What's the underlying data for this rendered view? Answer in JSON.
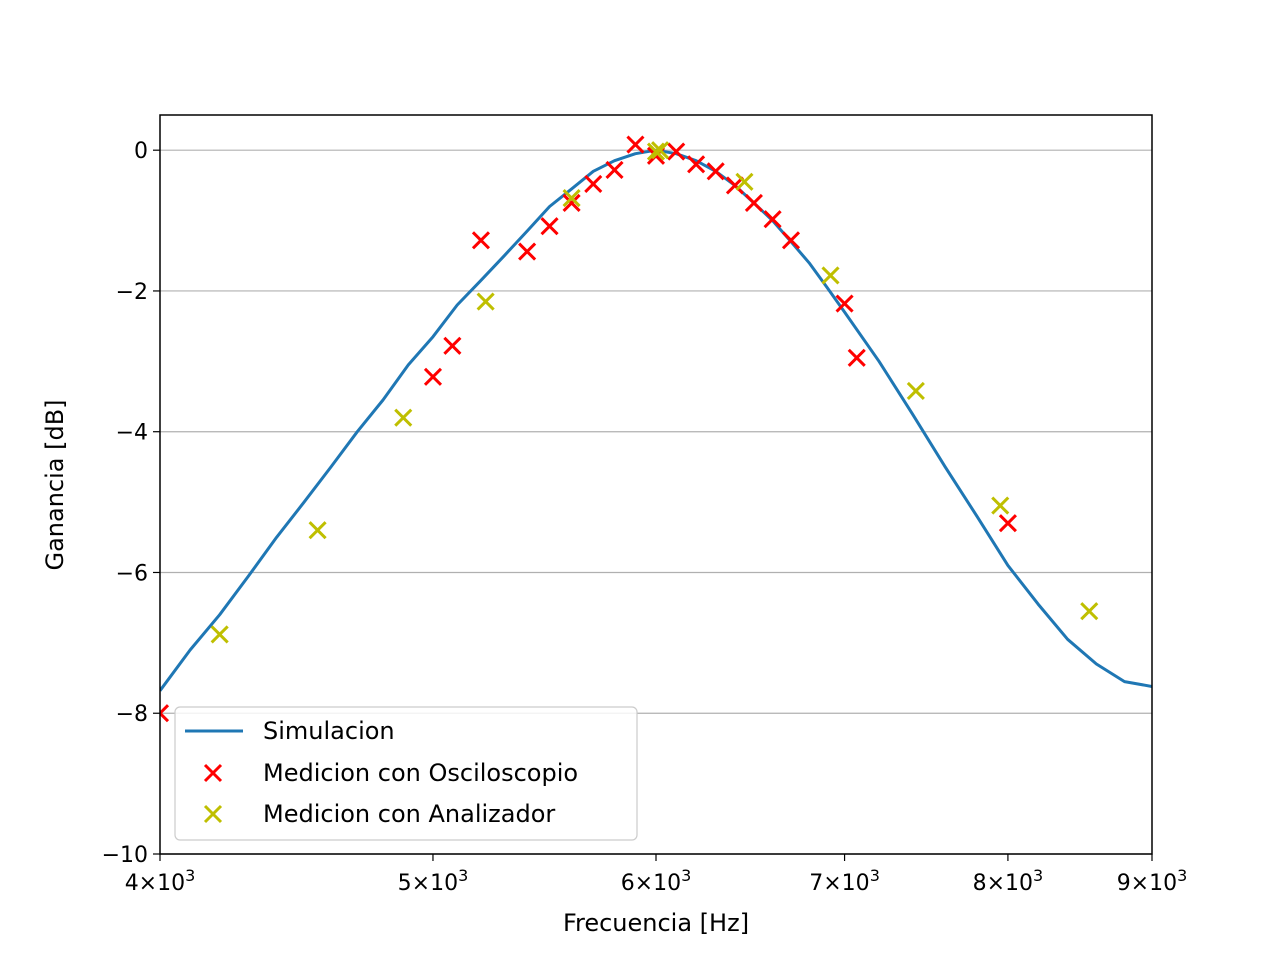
{
  "chart_data": {
    "type": "line",
    "title": "",
    "xlabel": "Frecuencia [Hz]",
    "ylabel": "Ganancia [dB]",
    "xscale": "log",
    "xlim": [
      4000,
      9000
    ],
    "ylim": [
      -10,
      0.5
    ],
    "grid": "y",
    "legend_position": "lower-left",
    "x_ticks": [
      {
        "value": 4000,
        "mantissa": "4",
        "base": "10",
        "exp": "3"
      },
      {
        "value": 5000,
        "mantissa": "5",
        "base": "10",
        "exp": "3"
      },
      {
        "value": 6000,
        "mantissa": "6",
        "base": "10",
        "exp": "3"
      },
      {
        "value": 7000,
        "mantissa": "7",
        "base": "10",
        "exp": "3"
      },
      {
        "value": 8000,
        "mantissa": "8",
        "base": "10",
        "exp": "3"
      },
      {
        "value": 9000,
        "mantissa": "9",
        "base": "10",
        "exp": "3"
      }
    ],
    "times_sign": "×",
    "y_ticks": [
      {
        "value": 0,
        "label": "0"
      },
      {
        "value": -2,
        "label": "−2"
      },
      {
        "value": -4,
        "label": "−4"
      },
      {
        "value": -6,
        "label": "−6"
      },
      {
        "value": -8,
        "label": "−8"
      },
      {
        "value": -10,
        "label": "−10"
      }
    ],
    "series": [
      {
        "name": "Simulacion",
        "kind": "line",
        "color": "#1f77b4",
        "points": [
          [
            4000,
            -7.68
          ],
          [
            4100,
            -7.1
          ],
          [
            4200,
            -6.6
          ],
          [
            4300,
            -6.05
          ],
          [
            4400,
            -5.5
          ],
          [
            4500,
            -5.0
          ],
          [
            4600,
            -4.5
          ],
          [
            4700,
            -4.0
          ],
          [
            4800,
            -3.55
          ],
          [
            4900,
            -3.05
          ],
          [
            5000,
            -2.65
          ],
          [
            5100,
            -2.2
          ],
          [
            5200,
            -1.85
          ],
          [
            5300,
            -1.5
          ],
          [
            5400,
            -1.15
          ],
          [
            5500,
            -0.8
          ],
          [
            5600,
            -0.55
          ],
          [
            5700,
            -0.3
          ],
          [
            5800,
            -0.15
          ],
          [
            5900,
            -0.05
          ],
          [
            6000,
            0.0
          ],
          [
            6100,
            -0.05
          ],
          [
            6200,
            -0.15
          ],
          [
            6300,
            -0.3
          ],
          [
            6400,
            -0.5
          ],
          [
            6500,
            -0.75
          ],
          [
            6600,
            -1.0
          ],
          [
            6700,
            -1.3
          ],
          [
            6800,
            -1.6
          ],
          [
            6900,
            -1.95
          ],
          [
            7000,
            -2.3
          ],
          [
            7200,
            -3.0
          ],
          [
            7400,
            -3.75
          ],
          [
            7600,
            -4.5
          ],
          [
            7800,
            -5.2
          ],
          [
            8000,
            -5.9
          ],
          [
            8200,
            -6.45
          ],
          [
            8400,
            -6.95
          ],
          [
            8600,
            -7.3
          ],
          [
            8800,
            -7.55
          ],
          [
            9000,
            -7.62
          ]
        ]
      },
      {
        "name": "Medicion con Osciloscopio",
        "kind": "scatter",
        "color": "#ff0000",
        "points": [
          [
            4000,
            -8.0
          ],
          [
            5000,
            -3.22
          ],
          [
            5080,
            -2.78
          ],
          [
            5200,
            -1.28
          ],
          [
            5400,
            -1.44
          ],
          [
            5500,
            -1.08
          ],
          [
            5600,
            -0.75
          ],
          [
            5700,
            -0.48
          ],
          [
            5800,
            -0.28
          ],
          [
            5900,
            0.08
          ],
          [
            6000,
            -0.08
          ],
          [
            6100,
            -0.02
          ],
          [
            6200,
            -0.2
          ],
          [
            6300,
            -0.3
          ],
          [
            6400,
            -0.5
          ],
          [
            6500,
            -0.75
          ],
          [
            6600,
            -0.98
          ],
          [
            6700,
            -1.28
          ],
          [
            7000,
            -2.18
          ],
          [
            7070,
            -2.95
          ],
          [
            8000,
            -5.3
          ]
        ]
      },
      {
        "name": "Medicion con Analizador",
        "kind": "scatter",
        "color": "#bfbf00",
        "points": [
          [
            4200,
            -6.88
          ],
          [
            4550,
            -5.4
          ],
          [
            4880,
            -3.8
          ],
          [
            5220,
            -2.15
          ],
          [
            5600,
            -0.68
          ],
          [
            6000,
            -0.02
          ],
          [
            6020,
            0.0
          ],
          [
            6450,
            -0.45
          ],
          [
            6920,
            -1.78
          ],
          [
            7420,
            -3.42
          ],
          [
            7950,
            -5.05
          ],
          [
            8550,
            -6.55
          ]
        ]
      }
    ]
  }
}
